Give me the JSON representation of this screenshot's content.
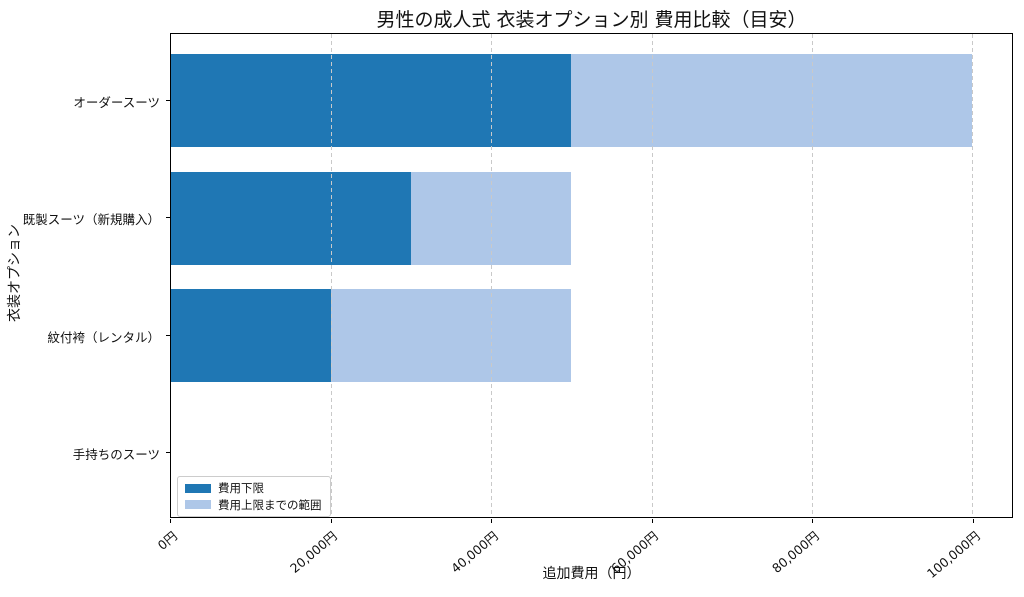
{
  "title": "男性の成人式 衣装オプション別 費用比較（目安）",
  "chart_data": {
    "type": "bar",
    "orientation": "horizontal",
    "stacked": true,
    "title": "男性の成人式 衣装オプション別 費用比較（目安）",
    "xlabel": "追加費用（円）",
    "ylabel": "衣装オプション",
    "categories": [
      "オーダースーツ",
      "既製スーツ（新規購入）",
      "紋付袴（レンタル）",
      "手持ちのスーツ"
    ],
    "series": [
      {
        "name": "費用下限",
        "color": "#1f77b4",
        "values": [
          50000,
          30000,
          20000,
          0
        ]
      },
      {
        "name": "費用上限までの範囲",
        "color": "#aec7e8",
        "values": [
          50000,
          20000,
          30000,
          0
        ]
      }
    ],
    "totals_upper": [
      100000,
      50000,
      50000,
      0
    ],
    "xlim": [
      0,
      105000
    ],
    "xticks": [
      {
        "value": 0,
        "label": "0円"
      },
      {
        "value": 20000,
        "label": "20,000円"
      },
      {
        "value": 40000,
        "label": "40,000円"
      },
      {
        "value": 60000,
        "label": "60,000円"
      },
      {
        "value": 80000,
        "label": "80,000円"
      },
      {
        "value": 100000,
        "label": "100,000円"
      }
    ],
    "grid": "vertical-dashed",
    "grid_color": "#c9c9c9",
    "legend_position": "lower-left",
    "background": "#ffffff"
  }
}
